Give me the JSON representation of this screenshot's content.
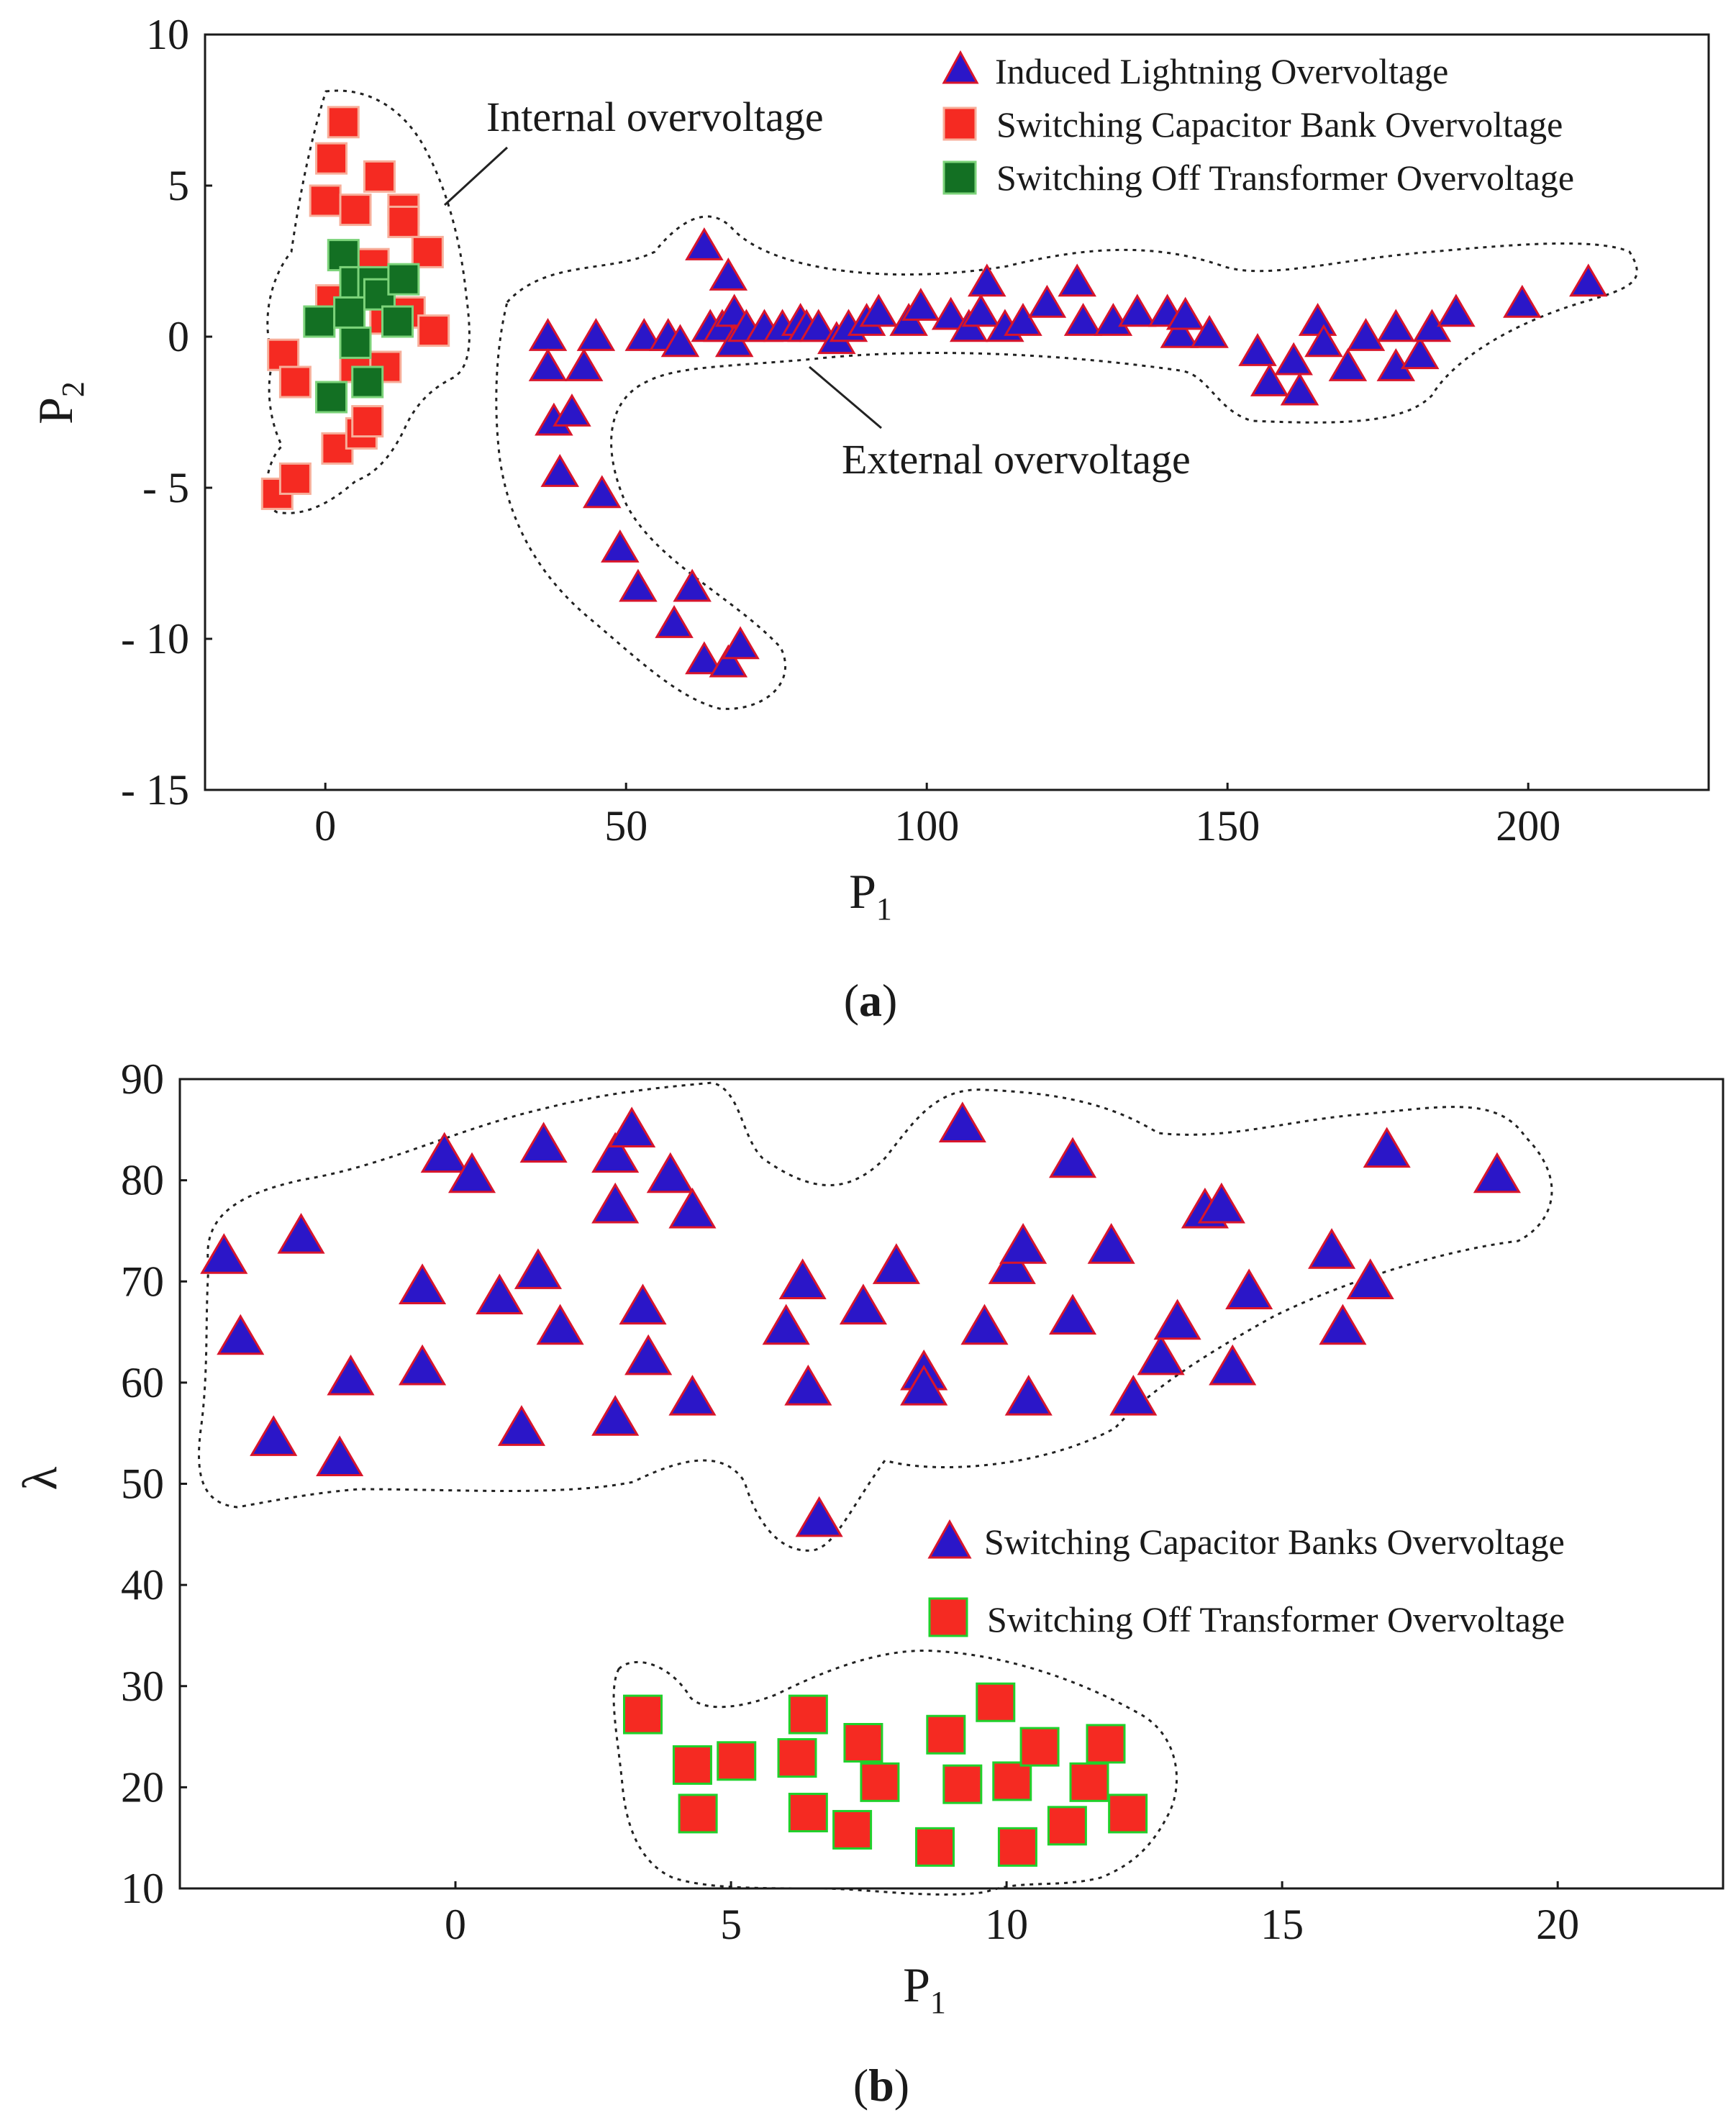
{
  "colors": {
    "triangle_fill": "#2b16c8",
    "triangle_stroke": "#d8152b",
    "red_square_fill": "#f52a22",
    "red_square_stroke": "#f7ae9a",
    "green_square_fill": "#137023",
    "green_square_stroke": "#7cd37a",
    "b_square_stroke": "#1fd12b"
  },
  "chart_data": [
    {
      "type": "scatter",
      "panel_label": "a",
      "xlabel_main": "P",
      "xlabel_sub": "1",
      "ylabel_main": "P",
      "ylabel_sub": "2",
      "xlim": [
        -20,
        230
      ],
      "ylim": [
        -15,
        10
      ],
      "xticks": [
        0,
        50,
        100,
        150,
        200
      ],
      "yticks": [
        10,
        5,
        0,
        -5,
        -10,
        -15
      ],
      "ytick_labels": [
        "10",
        "5",
        "0",
        "- 5",
        "- 10",
        "- 15"
      ],
      "grid": false,
      "legend_position": "top-right",
      "annotations": [
        {
          "text": "Internal overvoltage",
          "target": "red-green cluster"
        },
        {
          "text": "External overvoltage",
          "target": "blue cluster"
        }
      ],
      "series": [
        {
          "name": "Induced Lightning Overvoltage",
          "marker": "triangle",
          "points": [
            [
              37,
              0
            ],
            [
              37,
              -1
            ],
            [
              38,
              -2.8
            ],
            [
              39,
              -4.5
            ],
            [
              41,
              -2.5
            ],
            [
              43,
              -1
            ],
            [
              45,
              0
            ],
            [
              46,
              -5.2
            ],
            [
              49,
              -7
            ],
            [
              52,
              -8.3
            ],
            [
              53,
              0
            ],
            [
              57,
              0
            ],
            [
              58,
              -9.5
            ],
            [
              59,
              -0.2
            ],
            [
              61,
              -8.3
            ],
            [
              63,
              -10.7
            ],
            [
              63,
              3
            ],
            [
              64,
              0.3
            ],
            [
              66,
              0.3
            ],
            [
              67,
              -10.8
            ],
            [
              67,
              2
            ],
            [
              68,
              0.8
            ],
            [
              68,
              -0.2
            ],
            [
              69,
              -10.2
            ],
            [
              70,
              0.3
            ],
            [
              73,
              0.3
            ],
            [
              76,
              0.3
            ],
            [
              79,
              0.5
            ],
            [
              80,
              0.3
            ],
            [
              82,
              0.3
            ],
            [
              85,
              -0.1
            ],
            [
              87,
              0.3
            ],
            [
              90,
              0.5
            ],
            [
              92,
              0.8
            ],
            [
              97,
              0.5
            ],
            [
              99,
              1
            ],
            [
              104,
              0.7
            ],
            [
              107,
              0.3
            ],
            [
              109,
              0.8
            ],
            [
              110,
              1.8
            ],
            [
              113,
              0.3
            ],
            [
              116,
              0.5
            ],
            [
              120,
              1.1
            ],
            [
              125,
              1.8
            ],
            [
              126,
              0.5
            ],
            [
              131,
              0.5
            ],
            [
              135,
              0.8
            ],
            [
              140,
              0.8
            ],
            [
              142,
              0.1
            ],
            [
              143,
              0.7
            ],
            [
              147,
              0.1
            ],
            [
              155,
              -0.5
            ],
            [
              157,
              -1.5
            ],
            [
              161,
              -0.8
            ],
            [
              162,
              -1.8
            ],
            [
              165,
              0.5
            ],
            [
              166,
              -0.2
            ],
            [
              170,
              -1
            ],
            [
              173,
              0
            ],
            [
              178,
              0.3
            ],
            [
              178,
              -1
            ],
            [
              182,
              -0.6
            ],
            [
              184,
              0.3
            ],
            [
              188,
              0.8
            ],
            [
              199,
              1.1
            ],
            [
              210,
              1.8
            ]
          ]
        },
        {
          "name": "Switching Capacitor Bank Overvoltage",
          "marker": "square",
          "points": [
            [
              -8,
              -5.2
            ],
            [
              -7,
              -0.6
            ],
            [
              -5,
              -4.7
            ],
            [
              -5,
              -1.5
            ],
            [
              0,
              4.5
            ],
            [
              1,
              5.9
            ],
            [
              1,
              1.2
            ],
            [
              2,
              -3.7
            ],
            [
              3,
              7.1
            ],
            [
              5,
              -1
            ],
            [
              5,
              4.2
            ],
            [
              6,
              -3.2
            ],
            [
              7,
              -2.8
            ],
            [
              8,
              2.4
            ],
            [
              9,
              5.3
            ],
            [
              10,
              0.6
            ],
            [
              10,
              -1
            ],
            [
              13,
              4.2
            ],
            [
              13,
              3.8
            ],
            [
              14,
              0.8
            ],
            [
              17,
              2.8
            ],
            [
              18,
              0.2
            ]
          ]
        },
        {
          "name": "Switching Off Transformer Overvoltage",
          "marker": "square",
          "points": [
            [
              -1,
              0.5
            ],
            [
              1,
              -2
            ],
            [
              3,
              2.7
            ],
            [
              4,
              0.8
            ],
            [
              5,
              1.8
            ],
            [
              5,
              -0.2
            ],
            [
              7,
              -1.5
            ],
            [
              8,
              1.8
            ],
            [
              9,
              1.4
            ],
            [
              12,
              0.5
            ],
            [
              13,
              1.9
            ]
          ]
        }
      ]
    },
    {
      "type": "scatter",
      "panel_label": "b",
      "xlabel_main": "P",
      "xlabel_sub": "1",
      "ylabel": "λ",
      "xlim": [
        -5,
        23
      ],
      "ylim": [
        10,
        90
      ],
      "xticks": [
        0,
        5,
        10,
        15,
        20
      ],
      "yticks": [
        90,
        80,
        70,
        60,
        50,
        40,
        30,
        20,
        10
      ],
      "grid": false,
      "legend_position": "lower-right",
      "series": [
        {
          "name": "Switching Capacitor Banks Overvoltage",
          "marker": "triangle",
          "points": [
            [
              -4.2,
              72.5
            ],
            [
              -3.9,
              64.5
            ],
            [
              -3.3,
              54.5
            ],
            [
              -2.8,
              74.5
            ],
            [
              -2.1,
              52.5
            ],
            [
              -1.9,
              60.5
            ],
            [
              -0.6,
              69.5
            ],
            [
              -0.6,
              61.5
            ],
            [
              -0.2,
              82.5
            ],
            [
              0.3,
              80.5
            ],
            [
              0.8,
              68.5
            ],
            [
              1.2,
              55.5
            ],
            [
              1.5,
              71
            ],
            [
              1.6,
              83.5
            ],
            [
              1.9,
              65.5
            ],
            [
              2.9,
              82.5
            ],
            [
              2.9,
              77.5
            ],
            [
              2.9,
              56.5
            ],
            [
              3.2,
              85
            ],
            [
              3.4,
              67.5
            ],
            [
              3.5,
              62.5
            ],
            [
              3.9,
              80.5
            ],
            [
              4.3,
              77
            ],
            [
              4.3,
              58.5
            ],
            [
              6.0,
              65.5
            ],
            [
              6.3,
              70
            ],
            [
              6.4,
              59.5
            ],
            [
              6.6,
              46.5
            ],
            [
              7.4,
              67.5
            ],
            [
              8.0,
              71.5
            ],
            [
              8.5,
              61
            ],
            [
              8.5,
              59.5
            ],
            [
              9.2,
              85.5
            ],
            [
              9.6,
              65.5
            ],
            [
              10.1,
              71.5
            ],
            [
              10.3,
              73.5
            ],
            [
              10.4,
              58.5
            ],
            [
              11.2,
              82
            ],
            [
              11.2,
              66.5
            ],
            [
              11.9,
              73.5
            ],
            [
              12.3,
              58.5
            ],
            [
              12.8,
              62.5
            ],
            [
              13.1,
              66
            ],
            [
              13.6,
              77
            ],
            [
              13.9,
              77.5
            ],
            [
              14.1,
              61.5
            ],
            [
              14.4,
              69
            ],
            [
              15.9,
              73
            ],
            [
              16.1,
              65.5
            ],
            [
              16.6,
              70
            ],
            [
              16.9,
              83
            ],
            [
              18.9,
              80.5
            ]
          ]
        },
        {
          "name": "Switching Off Transformer Overvoltage",
          "marker": "square",
          "points": [
            [
              3.4,
              27.2
            ],
            [
              4.3,
              22.2
            ],
            [
              4.4,
              17.4
            ],
            [
              5.1,
              22.6
            ],
            [
              6.2,
              22.9
            ],
            [
              6.4,
              27.2
            ],
            [
              6.4,
              17.5
            ],
            [
              7.2,
              15.8
            ],
            [
              7.4,
              24.4
            ],
            [
              7.7,
              20.5
            ],
            [
              8.7,
              14.1
            ],
            [
              8.9,
              25.2
            ],
            [
              9.2,
              20.3
            ],
            [
              9.8,
              28.4
            ],
            [
              10.1,
              20.6
            ],
            [
              10.2,
              14.1
            ],
            [
              10.6,
              24
            ],
            [
              11.1,
              16.2
            ],
            [
              11.5,
              20.5
            ],
            [
              11.8,
              24.3
            ],
            [
              12.2,
              17.4
            ]
          ]
        }
      ]
    }
  ]
}
